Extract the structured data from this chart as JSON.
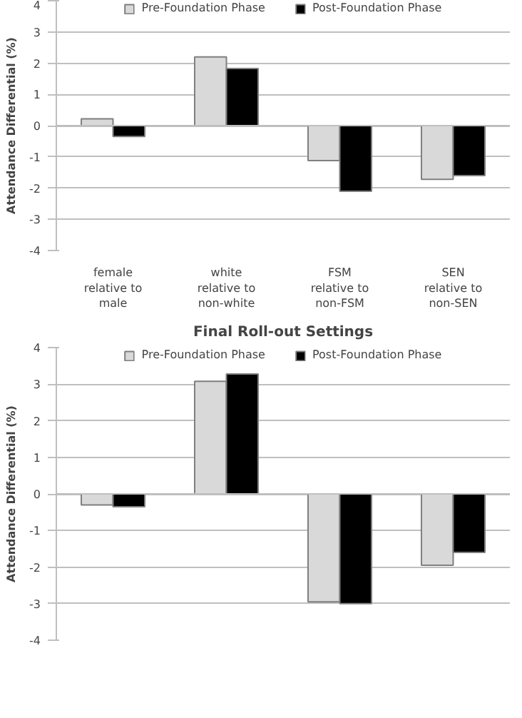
{
  "chart_data": [
    {
      "type": "bar",
      "ylabel": "Attendance Differential (%)",
      "categories": [
        "female relative to male",
        "white relative to non-white",
        "FSM relative to non-FSM",
        "SEN relative to non-SEN"
      ],
      "series": [
        {
          "name": "Pre-Foundation Phase",
          "color": "#d9d9d9",
          "values": [
            0.22,
            2.2,
            -1.12,
            -1.72
          ]
        },
        {
          "name": "Post-Foundation Phase",
          "color": "#000000",
          "values": [
            -0.35,
            1.83,
            -2.1,
            -1.6
          ]
        }
      ],
      "ylim": [
        -4,
        4
      ],
      "yticks": [
        -4,
        -3,
        -2,
        -1,
        0,
        1,
        2,
        3,
        4
      ],
      "grid": "y",
      "legend": "top"
    },
    {
      "type": "bar",
      "title": "Final Roll-out Settings",
      "ylabel": "Attendance Differential (%)",
      "categories": [
        null,
        null,
        null,
        null
      ],
      "series": [
        {
          "name": "Pre-Foundation Phase",
          "color": "#d9d9d9",
          "values": [
            -0.3,
            3.08,
            -2.95,
            -1.95
          ]
        },
        {
          "name": "Post-Foundation Phase",
          "color": "#000000",
          "values": [
            -0.35,
            3.28,
            -3.0,
            -1.6
          ]
        }
      ],
      "ylim": [
        -4,
        4
      ],
      "yticks": [
        -4,
        -3,
        -2,
        -1,
        0,
        1,
        2,
        3,
        4
      ],
      "grid": "y",
      "legend": "top"
    }
  ]
}
